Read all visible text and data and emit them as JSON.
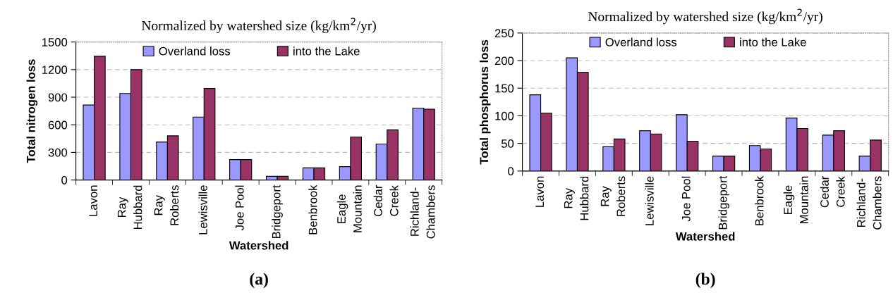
{
  "chart_data": [
    {
      "type": "bar",
      "title": "Normalized by watershed size (kg/km$^{2}$/yr)",
      "xlabel": "Watershed",
      "ylabel": "Total nitrogen loss",
      "categories": [
        "Lavon",
        "Ray\nHubbard",
        "Ray\nRoberts",
        "Lewisville",
        "Joe Pool",
        "Bridgeport",
        "Benbrook",
        "Eagle\nMountain",
        "Cedar\nCreek",
        "Richland-\nChambers"
      ],
      "series": [
        {
          "name": "Overland loss",
          "color": "#9999ff",
          "values": [
            815,
            940,
            413,
            684,
            222,
            40,
            132,
            145,
            391,
            782
          ]
        },
        {
          "name": "into the Lake",
          "color": "#993366",
          "values": [
            1345,
            1200,
            480,
            995,
            222,
            40,
            132,
            468,
            545,
            770
          ]
        }
      ],
      "ylim": [
        0,
        1500
      ],
      "yticks": [
        0,
        300,
        600,
        900,
        1200,
        1500
      ],
      "grid": "y",
      "legend": "top",
      "annotations": [
        "(a)"
      ]
    },
    {
      "type": "bar",
      "title": "Normalized by watershed size (kg/km$^{2}$/yr)",
      "xlabel": "Watershed",
      "ylabel": "Total phosphorus loss",
      "categories": [
        "Lavon",
        "Ray\nHubbard",
        "Ray\nRoberts",
        "Lewisville",
        "Joe Pool",
        "Bridgeport",
        "Benbrook",
        "Eagle\nMountain",
        "Cedar\nCreek",
        "Richland-\nChambers"
      ],
      "series": [
        {
          "name": "Overland loss",
          "color": "#9999ff",
          "values": [
            138,
            205,
            44,
            73,
            102,
            27,
            46,
            96,
            65,
            27
          ]
        },
        {
          "name": "into the Lake",
          "color": "#993366",
          "values": [
            105,
            179,
            58,
            67,
            54,
            27,
            40,
            77,
            73,
            56
          ]
        }
      ],
      "ylim": [
        0,
        250
      ],
      "yticks": [
        0,
        50,
        100,
        150,
        200,
        250
      ],
      "grid": "y",
      "legend": "top",
      "annotations": [
        "(b)"
      ]
    }
  ]
}
